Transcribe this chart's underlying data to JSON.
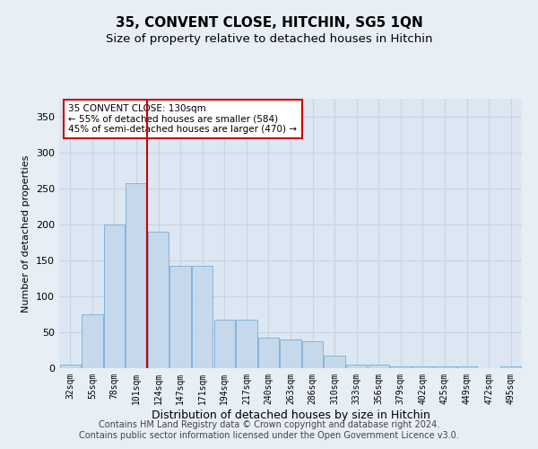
{
  "title1": "35, CONVENT CLOSE, HITCHIN, SG5 1QN",
  "title2": "Size of property relative to detached houses in Hitchin",
  "xlabel": "Distribution of detached houses by size in Hitchin",
  "ylabel": "Number of detached properties",
  "categories": [
    "32sqm",
    "55sqm",
    "78sqm",
    "101sqm",
    "124sqm",
    "147sqm",
    "171sqm",
    "194sqm",
    "217sqm",
    "240sqm",
    "263sqm",
    "286sqm",
    "310sqm",
    "333sqm",
    "356sqm",
    "379sqm",
    "402sqm",
    "425sqm",
    "449sqm",
    "472sqm",
    "495sqm"
  ],
  "values": [
    5,
    75,
    200,
    258,
    190,
    143,
    143,
    68,
    68,
    42,
    40,
    38,
    18,
    5,
    5,
    3,
    3,
    3,
    2,
    0,
    2
  ],
  "bar_color": "#c5d8ec",
  "bar_edge_color": "#7aadd4",
  "vline_x": 3.5,
  "vline_color": "#cc0000",
  "annotation_text_line1": "35 CONVENT CLOSE: 130sqm",
  "annotation_text_line2": "← 55% of detached houses are smaller (584)",
  "annotation_text_line3": "45% of semi-detached houses are larger (470) →",
  "ylim": [
    0,
    375
  ],
  "yticks": [
    0,
    50,
    100,
    150,
    200,
    250,
    300,
    350
  ],
  "footer_text": "Contains HM Land Registry data © Crown copyright and database right 2024.\nContains public sector information licensed under the Open Government Licence v3.0.",
  "background_color": "#e8eef5",
  "plot_background_color": "#dce7f3",
  "title1_fontsize": 11,
  "title2_fontsize": 9.5,
  "xlabel_fontsize": 9,
  "ylabel_fontsize": 8,
  "footer_fontsize": 7,
  "grid_color": "#c8d4e0"
}
